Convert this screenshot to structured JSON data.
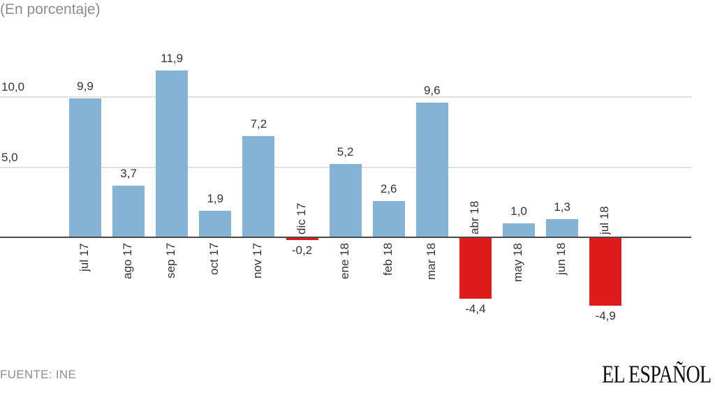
{
  "header": {
    "subtitle": "(En porcentaje)"
  },
  "footer": {
    "source": "FUENTE: INE",
    "logo": "EL ESPAÑOL"
  },
  "colors": {
    "positive": "#85b3d6",
    "negative": "#e01b1b",
    "gridline": "#e0e0e0",
    "axis": "#4a4a4a"
  },
  "chart_data": {
    "type": "bar",
    "title": "",
    "subtitle": "(En porcentaje)",
    "xlabel": "",
    "ylabel": "",
    "categories": [
      "jul 17",
      "ago 17",
      "sep 17",
      "oct 17",
      "nov 17",
      "dic 17",
      "ene 18",
      "feb 18",
      "mar 18",
      "abr 18",
      "may 18",
      "jun 18",
      "jul 18"
    ],
    "values": [
      9.9,
      3.7,
      11.9,
      1.9,
      7.2,
      -0.2,
      5.2,
      2.6,
      9.6,
      -4.4,
      1.0,
      1.3,
      -4.9
    ],
    "value_labels": [
      "9,9",
      "3,7",
      "11,9",
      "1,9",
      "7,2",
      "-0,2",
      "5,2",
      "2,6",
      "9,6",
      "-4,4",
      "1,0",
      "1,3",
      "-4,9"
    ],
    "yticks": [
      {
        "value": 5.0,
        "label": "5,0"
      },
      {
        "value": 10.0,
        "label": "10,0"
      }
    ],
    "ylim": [
      -5.5,
      12.5
    ],
    "grid": true,
    "legend": null,
    "source": "FUENTE: INE"
  }
}
